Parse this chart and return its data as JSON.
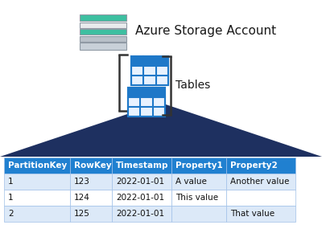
{
  "title": "Azure Storage Account",
  "tables_label": "Tables",
  "bg_color": "#ffffff",
  "triangle_color": "#1e3060",
  "table_header": [
    "PartitionKey",
    "RowKey",
    "Timestamp",
    "Property1",
    "Property2"
  ],
  "table_rows": [
    [
      "1",
      "123",
      "2022-01-01",
      "A value",
      "Another value"
    ],
    [
      "1",
      "124",
      "2022-01-01",
      "This value",
      ""
    ],
    [
      "2",
      "125",
      "2022-01-01",
      "",
      "That value"
    ]
  ],
  "header_bg": "#2080d0",
  "header_fg": "#ffffff",
  "row_bg_light": "#dce9f8",
  "row_bg_white": "#ffffff",
  "row_fg": "#111111",
  "grid_color": "#a0c0e8",
  "storage_bar_colors": [
    "#3dbfa0",
    "#e8eaec",
    "#3dbfa0",
    "#b8c0c8",
    "#c8d0d8"
  ],
  "table_icon_fill": "#e8f2ff",
  "table_icon_border": "#1e78c8",
  "table_icon_header": "#1e78c8",
  "bracket_color": "#333333",
  "text_color": "#1a1a1a"
}
